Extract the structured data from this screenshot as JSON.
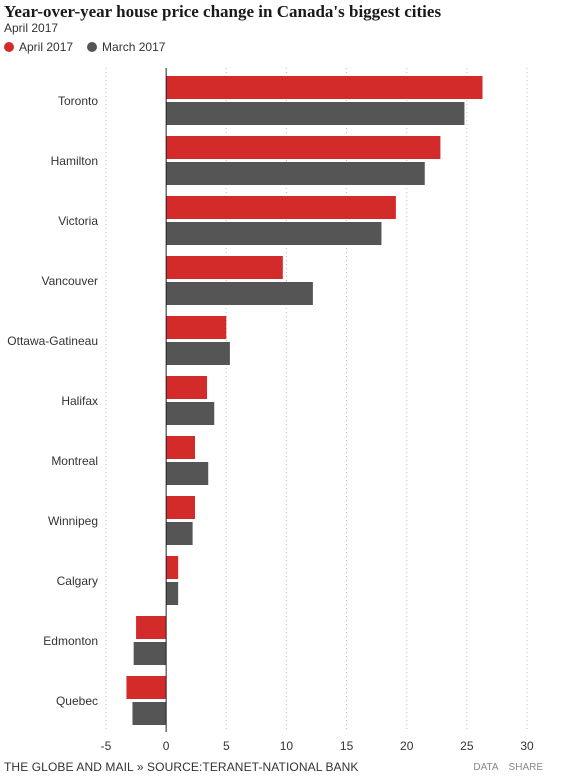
{
  "header": {
    "title": "Year-over-year house price change in Canada's biggest cities",
    "subtitle": "April 2017"
  },
  "footer": {
    "credit": "THE GLOBE AND MAIL » SOURCE:TERANET-NATIONAL BANK",
    "data_link": "DATA",
    "share_link": "SHARE"
  },
  "chart_data": {
    "type": "bar",
    "orientation": "horizontal",
    "categories": [
      "Toronto",
      "Hamilton",
      "Victoria",
      "Vancouver",
      "Ottawa-Gatineau",
      "Halifax",
      "Montreal",
      "Winnipeg",
      "Calgary",
      "Edmonton",
      "Quebec"
    ],
    "series": [
      {
        "name": "April 2017",
        "color": "#d32a2a",
        "values": [
          26.3,
          22.8,
          19.1,
          9.7,
          5.0,
          3.4,
          2.4,
          2.4,
          1.0,
          -2.5,
          -3.3
        ]
      },
      {
        "name": "March 2017",
        "color": "#555555",
        "values": [
          24.8,
          21.5,
          17.9,
          12.2,
          5.3,
          4.0,
          3.5,
          2.2,
          1.0,
          -2.7,
          -2.8
        ]
      }
    ],
    "xlim": [
      -5,
      30
    ],
    "xticks": [
      "-5",
      "0",
      "5",
      "10",
      "15",
      "20",
      "25",
      "30"
    ],
    "grid": true,
    "legend": "top-left"
  }
}
